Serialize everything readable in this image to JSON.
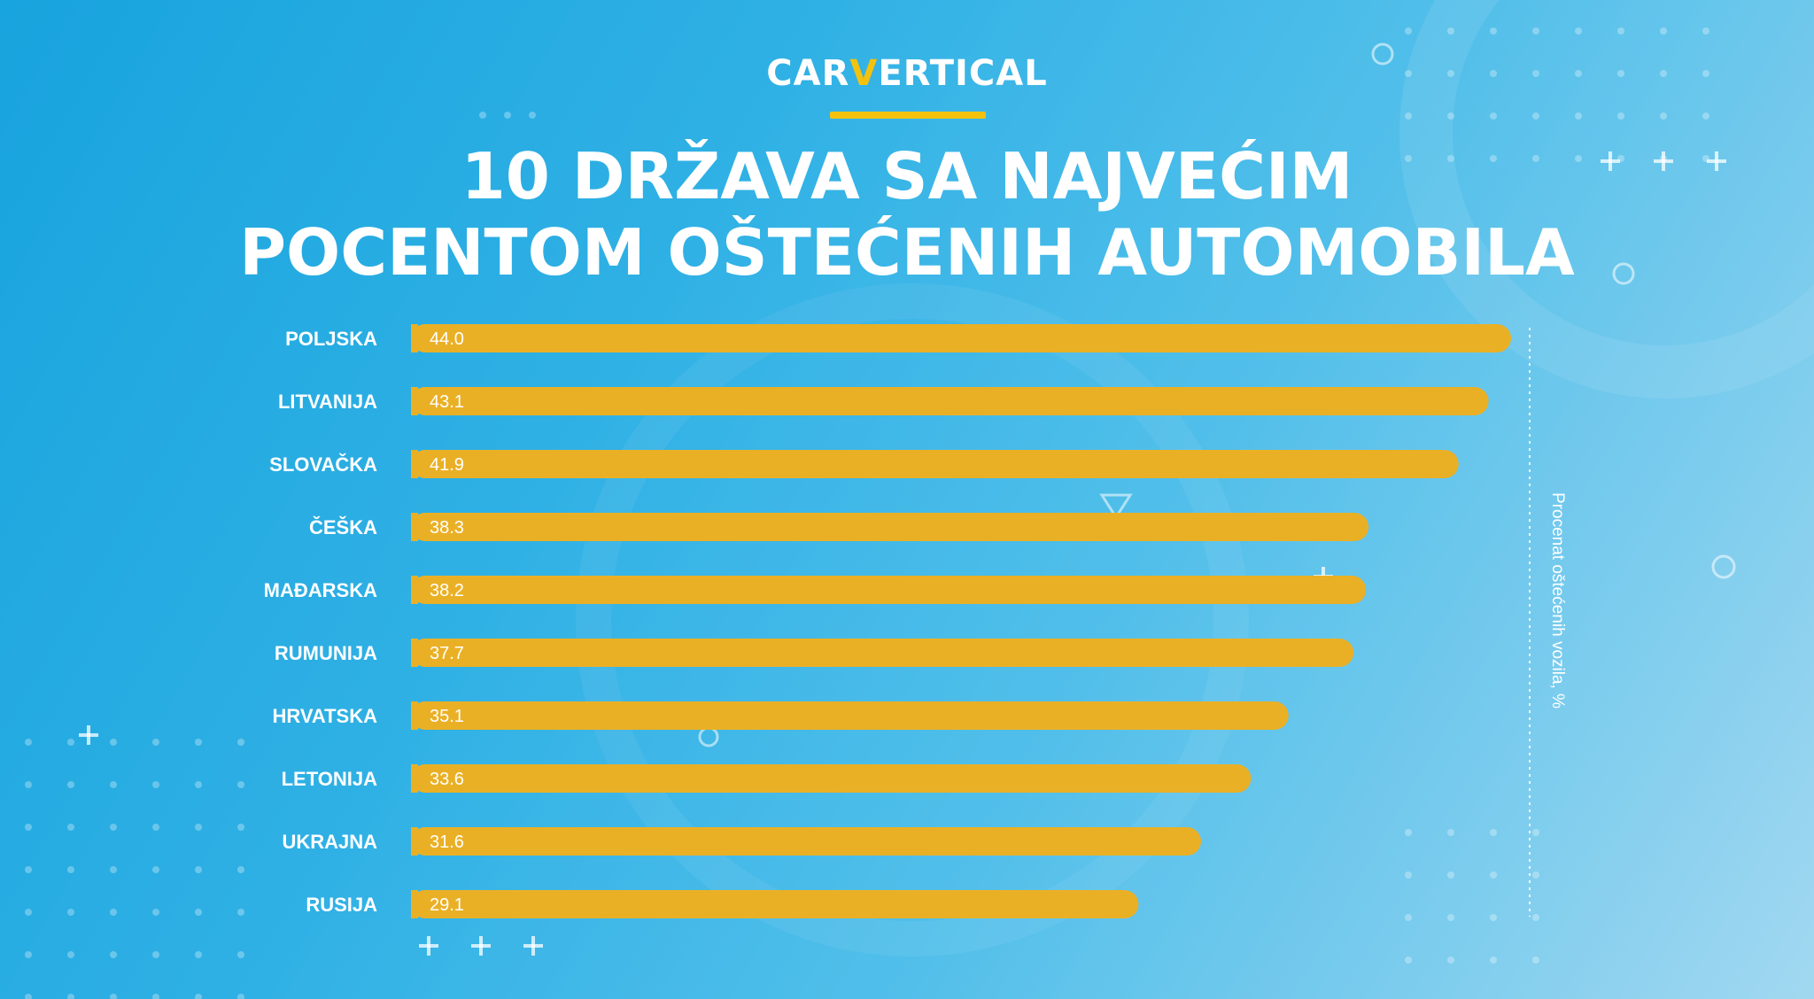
{
  "logo": {
    "prefix": "CAR",
    "v": "V",
    "suffix": "ERTICAL"
  },
  "title_lines": [
    "10 DRŽAVA SA NAJVEĆIM",
    "POCENTOM OŠTEĆENIH AUTOMOBILA"
  ],
  "colors": {
    "bar": "#eab025",
    "accent": "#f4c20d",
    "text": "#ffffff"
  },
  "chart_data": {
    "type": "bar",
    "orientation": "horizontal",
    "categories": [
      "POLJSKA",
      "LITVANIJA",
      "SLOVAČKA",
      "ČEŠKA",
      "MAĐARSKA",
      "RUMUNIJA",
      "HRVATSKA",
      "LETONIJA",
      "UKRAJNA",
      "RUSIJA"
    ],
    "values": [
      44.0,
      43.1,
      41.9,
      38.3,
      38.2,
      37.7,
      35.1,
      33.6,
      31.6,
      29.1
    ],
    "value_labels": [
      "44.0",
      "43.1",
      "41.9",
      "38.3",
      "38.2",
      "37.7",
      "35.1",
      "33.6",
      "31.6",
      "29.1"
    ],
    "axis_title": "Procenat oštećenih vozila, %",
    "grid": false,
    "legend": "none"
  }
}
